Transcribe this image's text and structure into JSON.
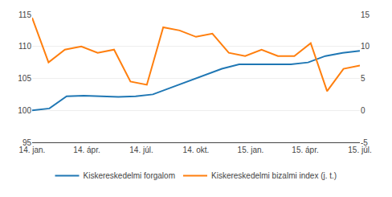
{
  "chart_data": {
    "type": "line",
    "xlim": [
      0,
      18
    ],
    "xticks": [
      {
        "value": 0,
        "label": "14. jan."
      },
      {
        "value": 3,
        "label": "14. ápr."
      },
      {
        "value": 6,
        "label": "14. júl."
      },
      {
        "value": 9,
        "label": "14. okt."
      },
      {
        "value": 12,
        "label": "15. jan."
      },
      {
        "value": 15,
        "label": "15. ápr."
      },
      {
        "value": 18,
        "label": "15. júl."
      }
    ],
    "ylim": [
      95,
      115
    ],
    "yticks": [
      95,
      100,
      105,
      110,
      115
    ],
    "y2lim": [
      -5,
      15
    ],
    "y2ticks": [
      -5,
      0,
      5,
      10,
      15
    ],
    "grid": true,
    "legend": "bottom",
    "series": [
      {
        "name": "Kiskereskedelmi forgalom",
        "x": [
          0,
          0.947368,
          1.894737,
          2.842105,
          3.789474,
          4.736842,
          5.684211,
          6.631579,
          7.578947,
          8.526316,
          9.473684,
          10.421053,
          11.368421,
          12.315789,
          13.263158,
          14.210526,
          15.157895,
          16.105263,
          17.052632,
          18
        ],
        "values": [
          100.0,
          100.3,
          102.2,
          102.3,
          102.2,
          102.1,
          102.2,
          102.5,
          103.5,
          104.5,
          105.5,
          106.5,
          107.2,
          107.2,
          107.2,
          107.2,
          107.5,
          108.5,
          109.0,
          109.3
        ]
      },
      {
        "name": "Kiskereskedelmi bizalmi index (j. t.)",
        "axis": "y2",
        "x": [
          0,
          0.9,
          1.8,
          2.7,
          3.6,
          4.5,
          5.4,
          6.3,
          7.2,
          8.1,
          9,
          9.9,
          10.8,
          11.7,
          12.6,
          13.5,
          14.4,
          15.3,
          16.2,
          17.1,
          18
        ],
        "values": [
          14.5,
          7.5,
          9.5,
          10.0,
          9.0,
          9.5,
          4.5,
          4.0,
          13.0,
          12.5,
          11.5,
          12.0,
          9.0,
          8.5,
          9.5,
          8.5,
          8.5,
          10.5,
          3.0,
          6.5,
          7.0
        ]
      }
    ]
  }
}
